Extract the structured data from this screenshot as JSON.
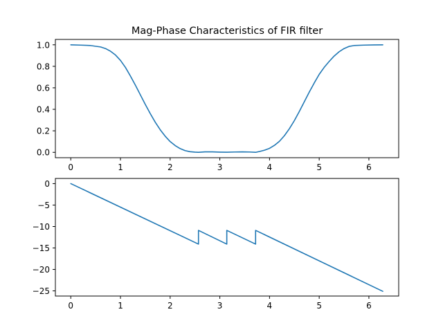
{
  "colors": {
    "series": "#1f77b4",
    "axes": "#000000",
    "background": "#ffffff"
  },
  "chart_data": [
    {
      "type": "line",
      "title": "Mag-Phase Characteristics of FIR filter",
      "xlabel": "",
      "ylabel": "",
      "xlim": [
        -0.31,
        6.6
      ],
      "ylim": [
        -0.05,
        1.05
      ],
      "grid": false,
      "xticks": [
        0,
        1,
        2,
        3,
        4,
        5,
        6
      ],
      "xtick_labels": [
        "0",
        "1",
        "2",
        "3",
        "4",
        "5",
        "6"
      ],
      "yticks": [
        0.0,
        0.2,
        0.4,
        0.6,
        0.8,
        1.0
      ],
      "ytick_labels": [
        "0.0",
        "0.2",
        "0.4",
        "0.6",
        "0.8",
        "1.0"
      ],
      "series": [
        {
          "x": [
            0,
            0.2,
            0.4,
            0.6,
            0.7,
            0.8,
            0.9,
            1.0,
            1.1,
            1.2,
            1.3,
            1.4,
            1.5,
            1.6,
            1.7,
            1.8,
            1.9,
            2.0,
            2.1,
            2.2,
            2.3,
            2.4,
            2.5,
            2.57,
            2.7,
            2.85,
            3.0,
            3.14,
            3.3,
            3.45,
            3.6,
            3.72,
            3.8,
            3.9,
            4.0,
            4.1,
            4.2,
            4.3,
            4.4,
            4.5,
            4.6,
            4.7,
            4.8,
            4.9,
            5.0,
            5.1,
            5.2,
            5.3,
            5.4,
            5.5,
            5.6,
            5.7,
            5.9,
            6.1,
            6.28
          ],
          "y": [
            1.0,
            0.997,
            0.993,
            0.98,
            0.965,
            0.94,
            0.905,
            0.855,
            0.79,
            0.71,
            0.625,
            0.535,
            0.445,
            0.36,
            0.28,
            0.21,
            0.15,
            0.1,
            0.063,
            0.035,
            0.016,
            0.006,
            0.002,
            0.0,
            0.004,
            0.004,
            0.002,
            0.001,
            0.003,
            0.004,
            0.003,
            0.0,
            0.008,
            0.02,
            0.037,
            0.065,
            0.103,
            0.155,
            0.22,
            0.295,
            0.38,
            0.47,
            0.56,
            0.645,
            0.725,
            0.79,
            0.845,
            0.895,
            0.935,
            0.965,
            0.985,
            0.993,
            0.997,
            0.999,
            1.0
          ]
        }
      ]
    },
    {
      "type": "line",
      "title": "",
      "xlabel": "",
      "ylabel": "",
      "xlim": [
        -0.31,
        6.6
      ],
      "ylim": [
        -26.2,
        1.2
      ],
      "grid": false,
      "xticks": [
        0,
        1,
        2,
        3,
        4,
        5,
        6
      ],
      "xtick_labels": [
        "0",
        "1",
        "2",
        "3",
        "4",
        "5",
        "6"
      ],
      "yticks": [
        0,
        -5,
        -10,
        -15,
        -20,
        -25
      ],
      "ytick_labels": [
        "0",
        "−5",
        "−10",
        "−15",
        "−20",
        "−25"
      ],
      "series": [
        {
          "x": [
            0,
            2.57,
            2.57,
            3.14,
            3.14,
            3.72,
            3.72,
            6.28
          ],
          "y": [
            0,
            -14.1,
            -10.9,
            -14.1,
            -10.9,
            -14.1,
            -10.9,
            -25.1
          ]
        }
      ]
    }
  ]
}
